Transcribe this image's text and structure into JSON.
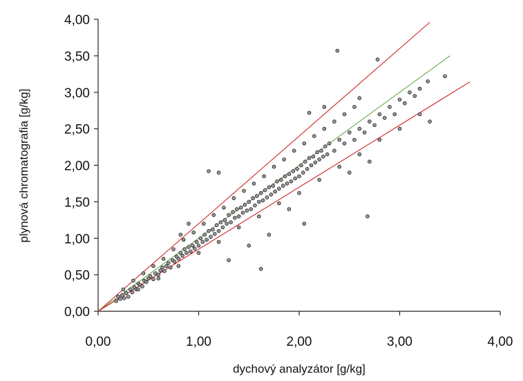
{
  "chart_data": {
    "type": "scatter",
    "title": "",
    "xlabel": "dychový analyzátor [g/kg]",
    "ylabel": "plynová chromatografia [g/kg]",
    "xlim": [
      0,
      4
    ],
    "ylim": [
      0,
      4
    ],
    "x_ticks": [
      0,
      1,
      2,
      3,
      4
    ],
    "y_ticks": [
      0,
      0.5,
      1,
      1.5,
      2,
      2.5,
      3,
      3.5,
      4
    ],
    "x_tick_labels": [
      "0,00",
      "1,00",
      "2,00",
      "3,00",
      "4,00"
    ],
    "y_tick_labels": [
      "0,00",
      "0,50",
      "1,00",
      "1,50",
      "2,00",
      "2,50",
      "3,00",
      "3,50",
      "4,00"
    ],
    "grid": false,
    "legend": "none",
    "marker_color": "#9a9a9a",
    "marker_edge_color": "#1a1a1a",
    "reference_lines": [
      {
        "slope": 1.2,
        "x_end": 3.3,
        "color": "#cc2222"
      },
      {
        "slope": 1.0,
        "x_end": 3.5,
        "color": "#6aa84f"
      },
      {
        "slope": 0.85,
        "x_end": 3.7,
        "color": "#cc2222"
      }
    ],
    "points": [
      [
        0.18,
        0.14
      ],
      [
        0.2,
        0.2
      ],
      [
        0.22,
        0.17
      ],
      [
        0.24,
        0.22
      ],
      [
        0.26,
        0.18
      ],
      [
        0.28,
        0.25
      ],
      [
        0.3,
        0.2
      ],
      [
        0.32,
        0.3
      ],
      [
        0.34,
        0.26
      ],
      [
        0.36,
        0.33
      ],
      [
        0.38,
        0.3
      ],
      [
        0.4,
        0.38
      ],
      [
        0.42,
        0.36
      ],
      [
        0.44,
        0.34
      ],
      [
        0.46,
        0.42
      ],
      [
        0.48,
        0.4
      ],
      [
        0.5,
        0.45
      ],
      [
        0.52,
        0.48
      ],
      [
        0.55,
        0.44
      ],
      [
        0.57,
        0.52
      ],
      [
        0.6,
        0.5
      ],
      [
        0.62,
        0.56
      ],
      [
        0.64,
        0.6
      ],
      [
        0.66,
        0.55
      ],
      [
        0.68,
        0.62
      ],
      [
        0.7,
        0.66
      ],
      [
        0.72,
        0.6
      ],
      [
        0.74,
        0.7
      ],
      [
        0.76,
        0.68
      ],
      [
        0.78,
        0.75
      ],
      [
        0.8,
        0.72
      ],
      [
        0.82,
        0.8
      ],
      [
        0.84,
        0.76
      ],
      [
        0.86,
        0.85
      ],
      [
        0.88,
        0.8
      ],
      [
        0.9,
        0.88
      ],
      [
        0.92,
        0.82
      ],
      [
        0.94,
        0.9
      ],
      [
        0.96,
        0.86
      ],
      [
        0.98,
        0.95
      ],
      [
        1.0,
        0.9
      ],
      [
        1.02,
        1.0
      ],
      [
        1.04,
        0.95
      ],
      [
        1.06,
        1.05
      ],
      [
        1.08,
        0.98
      ],
      [
        1.1,
        1.1
      ],
      [
        1.12,
        1.02
      ],
      [
        1.14,
        1.12
      ],
      [
        1.16,
        1.06
      ],
      [
        1.18,
        1.18
      ],
      [
        1.2,
        1.1
      ],
      [
        1.22,
        1.22
      ],
      [
        1.24,
        1.15
      ],
      [
        1.26,
        1.25
      ],
      [
        1.28,
        1.2
      ],
      [
        1.3,
        1.32
      ],
      [
        1.32,
        1.22
      ],
      [
        1.34,
        1.36
      ],
      [
        1.36,
        1.28
      ],
      [
        1.38,
        1.4
      ],
      [
        1.4,
        1.3
      ],
      [
        1.42,
        1.42
      ],
      [
        1.44,
        1.35
      ],
      [
        1.46,
        1.46
      ],
      [
        1.48,
        1.38
      ],
      [
        1.5,
        1.5
      ],
      [
        1.52,
        1.4
      ],
      [
        1.54,
        1.55
      ],
      [
        1.56,
        1.45
      ],
      [
        1.58,
        1.58
      ],
      [
        1.6,
        1.5
      ],
      [
        1.62,
        1.62
      ],
      [
        1.64,
        1.52
      ],
      [
        1.66,
        1.66
      ],
      [
        1.68,
        1.56
      ],
      [
        1.7,
        1.7
      ],
      [
        1.72,
        1.6
      ],
      [
        1.74,
        1.72
      ],
      [
        1.76,
        1.64
      ],
      [
        1.78,
        1.78
      ],
      [
        1.8,
        1.68
      ],
      [
        1.82,
        1.8
      ],
      [
        1.84,
        1.72
      ],
      [
        1.86,
        1.85
      ],
      [
        1.88,
        1.75
      ],
      [
        1.9,
        1.88
      ],
      [
        1.92,
        1.78
      ],
      [
        1.94,
        1.92
      ],
      [
        1.96,
        1.82
      ],
      [
        1.98,
        1.95
      ],
      [
        2.0,
        1.85
      ],
      [
        2.02,
        2.0
      ],
      [
        2.04,
        1.9
      ],
      [
        2.06,
        2.05
      ],
      [
        2.08,
        1.95
      ],
      [
        2.1,
        2.1
      ],
      [
        2.12,
        2.0
      ],
      [
        2.14,
        2.12
      ],
      [
        2.16,
        2.04
      ],
      [
        2.18,
        2.18
      ],
      [
        2.2,
        2.08
      ],
      [
        2.22,
        2.2
      ],
      [
        2.24,
        2.12
      ],
      [
        2.26,
        2.26
      ],
      [
        2.28,
        2.15
      ],
      [
        2.3,
        2.3
      ],
      [
        2.35,
        2.2
      ],
      [
        2.4,
        2.35
      ],
      [
        2.45,
        2.3
      ],
      [
        2.5,
        2.45
      ],
      [
        2.55,
        2.35
      ],
      [
        2.6,
        2.5
      ],
      [
        2.65,
        2.45
      ],
      [
        2.7,
        2.6
      ],
      [
        2.75,
        2.55
      ],
      [
        2.8,
        2.7
      ],
      [
        2.85,
        2.65
      ],
      [
        2.9,
        2.8
      ],
      [
        2.95,
        2.7
      ],
      [
        3.0,
        2.9
      ],
      [
        3.05,
        2.85
      ],
      [
        3.1,
        3.0
      ],
      [
        3.15,
        2.95
      ],
      [
        3.2,
        3.05
      ],
      [
        0.25,
        0.3
      ],
      [
        0.35,
        0.42
      ],
      [
        0.45,
        0.52
      ],
      [
        0.55,
        0.62
      ],
      [
        0.65,
        0.72
      ],
      [
        0.75,
        0.85
      ],
      [
        0.85,
        0.98
      ],
      [
        0.95,
        1.08
      ],
      [
        1.05,
        1.2
      ],
      [
        1.15,
        1.32
      ],
      [
        1.25,
        1.42
      ],
      [
        1.35,
        1.55
      ],
      [
        1.45,
        1.65
      ],
      [
        1.55,
        1.75
      ],
      [
        1.65,
        1.85
      ],
      [
        1.75,
        1.98
      ],
      [
        1.85,
        2.08
      ],
      [
        1.95,
        2.2
      ],
      [
        2.05,
        2.3
      ],
      [
        2.15,
        2.4
      ],
      [
        2.25,
        2.5
      ],
      [
        2.35,
        2.6
      ],
      [
        2.45,
        2.7
      ],
      [
        2.55,
        2.8
      ],
      [
        0.4,
        0.3
      ],
      [
        0.6,
        0.45
      ],
      [
        0.8,
        0.62
      ],
      [
        1.0,
        0.8
      ],
      [
        1.2,
        0.95
      ],
      [
        1.4,
        1.15
      ],
      [
        1.6,
        1.3
      ],
      [
        1.8,
        1.48
      ],
      [
        2.0,
        1.62
      ],
      [
        2.2,
        1.8
      ],
      [
        2.4,
        1.98
      ],
      [
        2.6,
        2.15
      ],
      [
        2.8,
        2.35
      ],
      [
        3.0,
        2.5
      ],
      [
        3.2,
        2.7
      ],
      [
        3.3,
        2.6
      ],
      [
        1.1,
        1.92
      ],
      [
        1.2,
        1.9
      ],
      [
        1.62,
        0.58
      ],
      [
        2.38,
        3.57
      ],
      [
        2.68,
        1.3
      ],
      [
        2.78,
        3.45
      ],
      [
        3.45,
        3.22
      ],
      [
        3.28,
        3.15
      ],
      [
        2.1,
        2.72
      ],
      [
        2.05,
        1.2
      ],
      [
        2.25,
        2.8
      ],
      [
        2.6,
        2.92
      ],
      [
        0.82,
        1.05
      ],
      [
        0.9,
        1.2
      ],
      [
        1.3,
        0.7
      ],
      [
        1.5,
        0.9
      ],
      [
        1.7,
        1.05
      ],
      [
        1.9,
        1.4
      ],
      [
        2.5,
        1.9
      ],
      [
        2.7,
        2.05
      ]
    ]
  }
}
